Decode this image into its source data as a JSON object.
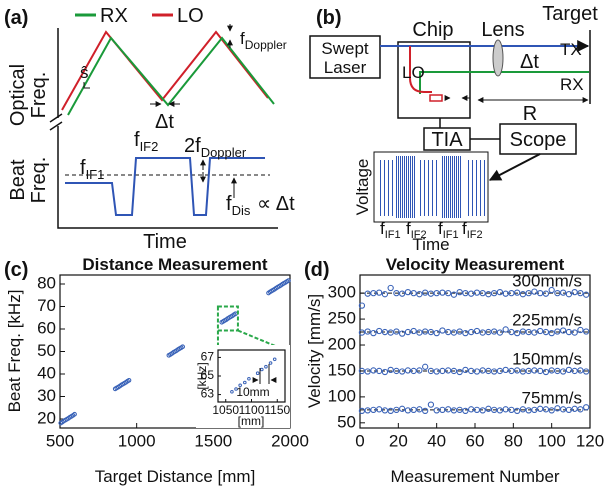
{
  "panel_a": {
    "label": "(a)",
    "legend": {
      "rx": "RX",
      "lo": "LO"
    },
    "optical_label": [
      "Optical",
      "Freq."
    ],
    "beat_label": [
      "Beat",
      "Freq."
    ],
    "time_label": "Time",
    "slope": "ŝ",
    "doppler": {
      "main": "f",
      "sub": "Doppler"
    },
    "delay": "Δt",
    "f_if2": {
      "main": "f",
      "sub": "IF2"
    },
    "f_if1": {
      "main": "f",
      "sub": "IF1"
    },
    "two_doppler": {
      "main": "2f",
      "sub": "Doppler"
    },
    "f_dis": {
      "main": "f",
      "sub": "Dis"
    },
    "proportional": "∝ Δt"
  },
  "panel_b": {
    "label": "(b)",
    "laser": [
      "Swept",
      "Laser"
    ],
    "chip": "Chip",
    "lens": "Lens",
    "target": "Target",
    "tx": "TX",
    "rx": "RX",
    "lo": "LO",
    "delay": "Δt",
    "range": "R",
    "tia": "TIA",
    "scope": "Scope",
    "voltage": "Voltage",
    "time": "Time",
    "freq_labels": [
      {
        "main": "f",
        "sub": "IF1"
      },
      {
        "main": "f",
        "sub": "IF2"
      },
      {
        "main": "f",
        "sub": "IF1"
      },
      {
        "main": "f",
        "sub": "IF2"
      }
    ]
  },
  "chart_data": [
    {
      "type": "scatter",
      "label": "(c)",
      "title": "Distance Measurement",
      "x_label": "Target Distance [mm]",
      "y_label": "Beat Freq. [kHz]",
      "xlim": [
        500,
        2000
      ],
      "xticks": [
        500,
        1000,
        1500,
        2000
      ],
      "ylim": [
        16,
        84
      ],
      "yticks": [
        20,
        30,
        40,
        50,
        60,
        70,
        80
      ],
      "series": [
        {
          "color": "#3a63b8",
          "x": [
            505,
            515,
            525,
            535,
            545,
            555,
            565,
            575,
            585,
            595,
            860,
            870,
            880,
            890,
            900,
            910,
            920,
            930,
            940,
            950,
            1210,
            1220,
            1230,
            1240,
            1250,
            1260,
            1270,
            1280,
            1290,
            1300,
            1555,
            1565,
            1575,
            1585,
            1595,
            1605,
            1615,
            1625,
            1635,
            1645,
            1860,
            1870,
            1880,
            1890,
            1900,
            1910,
            1920,
            1930,
            1940,
            1950,
            1960,
            1970,
            1980,
            1990
          ],
          "values": [
            18.2,
            18.6,
            19.1,
            19.5,
            19.9,
            20.3,
            20.8,
            21.2,
            21.6,
            22.1,
            33.4,
            33.8,
            34.2,
            34.6,
            35.1,
            35.5,
            35.9,
            36.3,
            36.8,
            37.2,
            48.3,
            48.7,
            49.1,
            49.6,
            50.0,
            50.4,
            50.9,
            51.3,
            51.7,
            52.1,
            63.0,
            63.4,
            63.8,
            64.2,
            64.7,
            65.1,
            65.5,
            65.9,
            66.4,
            66.8,
            76.0,
            76.5,
            76.9,
            77.3,
            77.7,
            78.2,
            78.6,
            79.0,
            79.4,
            79.9,
            80.3,
            80.7,
            81.1,
            81.5
          ]
        }
      ],
      "inset": {
        "x_label": "[mm]",
        "y_label": "[kHz]",
        "annotation": "10mm",
        "xlim": [
          1035,
          1165
        ],
        "xticks": [
          1050,
          1100,
          1150
        ],
        "ylim": [
          62.2,
          67.8
        ],
        "yticks": [
          63,
          65,
          67
        ],
        "x": [
          1062,
          1070,
          1078,
          1087,
          1095,
          1112,
          1120,
          1128,
          1137,
          1145
        ],
        "values": [
          63.3,
          63.6,
          64.0,
          64.3,
          64.7,
          65.3,
          65.7,
          66.0,
          66.4,
          66.8
        ]
      }
    },
    {
      "type": "scatter",
      "label": "(d)",
      "title": "Velocity Measurement",
      "x_label": "Measurement Number",
      "y_label": "Velocity [mm/s]",
      "xlim": [
        0,
        120
      ],
      "xticks": [
        0,
        20,
        40,
        60,
        80,
        100,
        120
      ],
      "ylim": [
        40,
        335
      ],
      "yticks": [
        50,
        100,
        150,
        200,
        250,
        300
      ],
      "x": [
        1,
        4,
        7,
        10,
        13,
        16,
        19,
        22,
        25,
        28,
        31,
        34,
        37,
        40,
        43,
        46,
        49,
        52,
        55,
        58,
        61,
        64,
        67,
        70,
        73,
        76,
        79,
        82,
        85,
        88,
        91,
        94,
        97,
        100,
        103,
        106,
        109,
        112,
        115,
        118
      ],
      "series": [
        {
          "label": "300mm/s",
          "reference": 300,
          "color": "#3a63b8",
          "values": [
            276,
            299,
            300,
            301,
            298,
            310,
            300,
            299,
            302,
            300,
            298,
            301,
            299,
            300,
            301,
            300,
            297,
            302,
            300,
            299,
            301,
            300,
            298,
            300,
            302,
            299,
            300,
            301,
            298,
            300,
            303,
            300,
            299,
            306,
            300,
            301,
            298,
            302,
            300,
            297
          ]
        },
        {
          "label": "225mm/s",
          "reference": 225,
          "color": "#3a63b8",
          "values": [
            224,
            226,
            223,
            227,
            225,
            224,
            226,
            222,
            225,
            227,
            224,
            226,
            225,
            223,
            228,
            225,
            224,
            226,
            223,
            225,
            227,
            224,
            225,
            226,
            224,
            230,
            225,
            223,
            226,
            225,
            224,
            227,
            225,
            223,
            226,
            228,
            225,
            224,
            229,
            226
          ]
        },
        {
          "label": "150mm/s",
          "reference": 150,
          "color": "#3a63b8",
          "values": [
            150,
            149,
            151,
            150,
            148,
            152,
            150,
            149,
            151,
            150,
            151,
            158,
            150,
            149,
            150,
            151,
            150,
            148,
            152,
            150,
            149,
            151,
            150,
            149,
            150,
            152,
            150,
            151,
            149,
            150,
            151,
            150,
            148,
            151,
            150,
            149,
            152,
            150,
            151,
            149
          ]
        },
        {
          "label": "75mm/s",
          "reference": 75,
          "color": "#3a63b8",
          "values": [
            73,
            74,
            75,
            76,
            74,
            73,
            75,
            77,
            74,
            75,
            76,
            73,
            85,
            74,
            75,
            76,
            74,
            75,
            73,
            76,
            75,
            74,
            77,
            75,
            74,
            76,
            75,
            73,
            76,
            74,
            75,
            77,
            76,
            74,
            78,
            76,
            75,
            77,
            76,
            80
          ]
        }
      ]
    }
  ]
}
